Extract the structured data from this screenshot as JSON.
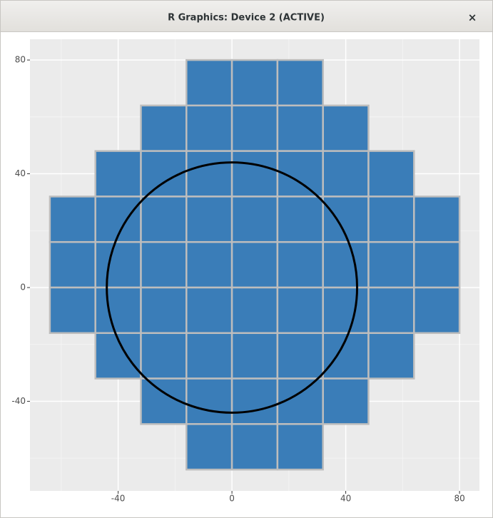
{
  "window": {
    "title": "R Graphics: Device 2 (ACTIVE)",
    "close": "×"
  },
  "chart_data": {
    "type": "tile",
    "tiles": {
      "x": [
        -8,
        8,
        24,
        -24,
        -8,
        8,
        24,
        40,
        -40,
        -24,
        -8,
        8,
        24,
        40,
        56,
        -56,
        -40,
        -24,
        -8,
        8,
        24,
        40,
        56,
        72,
        -56,
        -40,
        -24,
        -8,
        8,
        24,
        40,
        56,
        72,
        -56,
        -40,
        -24,
        -8,
        8,
        24,
        40,
        56,
        72,
        -40,
        -24,
        -8,
        8,
        24,
        40,
        56,
        -24,
        -8,
        8,
        24,
        40,
        -8,
        8,
        24
      ],
      "y": [
        72,
        72,
        72,
        56,
        56,
        56,
        56,
        56,
        40,
        40,
        40,
        40,
        40,
        40,
        40,
        24,
        24,
        24,
        24,
        24,
        24,
        24,
        24,
        24,
        8,
        8,
        8,
        8,
        8,
        8,
        8,
        8,
        8,
        -8,
        -8,
        -8,
        -8,
        -8,
        -8,
        -8,
        -8,
        -8,
        -24,
        -24,
        -24,
        -24,
        -24,
        -24,
        -24,
        -40,
        -40,
        -40,
        -40,
        -40,
        -56,
        -56,
        -56
      ],
      "width": 16,
      "height": 16,
      "color": "#3a7db8",
      "outline": "#bdbdbd"
    },
    "circle": {
      "x": 0,
      "y": 0,
      "r": 44,
      "color": "#000000"
    },
    "xlim": [
      -71,
      87
    ],
    "ylim": [
      -71.5,
      87.3
    ],
    "xticks": [
      -40,
      0,
      40,
      80
    ],
    "yticks": [
      -40,
      0,
      40,
      80
    ],
    "xminor": [
      -60,
      -20,
      20,
      60
    ],
    "yminor": [
      -60,
      -20,
      20,
      60
    ],
    "grid": true
  }
}
